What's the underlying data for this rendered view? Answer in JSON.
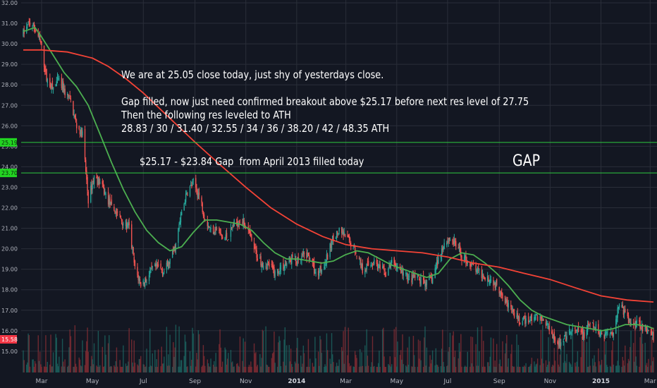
{
  "colors": {
    "background": "#131722",
    "grid": "#2a2e39",
    "axis_text": "#b2b5be",
    "candle_up": "#26a69a",
    "candle_down": "#ef5350",
    "volume_up": "#1e6b65",
    "volume_down": "#8e2f36",
    "ma_fast": "#4caf50",
    "ma_slow": "#f44336",
    "level_line": "#2ecc40",
    "level_tag": "#22d422",
    "price_tag": "#f23645"
  },
  "annotations": {
    "main_note": "We are at 25.05 close today, just shy of yesterdays close.\n\nGap filled, now just need confirmed breakout above $25.17 before next res level of 27.75\nThen the following res leveled to ATH\n28.83 / 30 / 31.40 / 32.55 / 34 / 36 / 38.20 / 42 / 48.35 ATH",
    "gap_note": "$25.17 - $23.84 Gap  from April 2013 filled today",
    "gap_label": "GAP"
  },
  "chart_data": {
    "type": "candlestick",
    "title": "",
    "y_axis": {
      "ylim": [
        14.5,
        32.2
      ],
      "ticks": [
        "32.00",
        "31.00",
        "30.00",
        "29.00",
        "28.00",
        "27.00",
        "26.00",
        "25.00",
        "24.00",
        "23.00",
        "22.00",
        "21.00",
        "20.00",
        "19.00",
        "18.00",
        "17.00",
        "16.00",
        "15.00"
      ]
    },
    "x_axis": {
      "range": [
        "2013-02-07",
        "2015-03-05"
      ],
      "ticks": [
        {
          "label": "Mar",
          "date": "2013-03-01"
        },
        {
          "label": "May",
          "date": "2013-05-01"
        },
        {
          "label": "Jul",
          "date": "2013-07-01"
        },
        {
          "label": "Sep",
          "date": "2013-09-01"
        },
        {
          "label": "Nov",
          "date": "2013-11-01"
        },
        {
          "label": "2014",
          "date": "2014-01-01"
        },
        {
          "label": "Mar",
          "date": "2014-03-01"
        },
        {
          "label": "May",
          "date": "2014-05-01"
        },
        {
          "label": "Jul",
          "date": "2014-07-01"
        },
        {
          "label": "Sep",
          "date": "2014-09-01"
        },
        {
          "label": "Nov",
          "date": "2014-11-01"
        },
        {
          "label": "2015",
          "date": "2015-01-01"
        },
        {
          "label": "Mar",
          "date": "2015-03-01"
        }
      ]
    },
    "price_path": [
      [
        "2013-02-07",
        30.5
      ],
      [
        "2013-02-14",
        31.0
      ],
      [
        "2013-02-21",
        30.8
      ],
      [
        "2013-02-28",
        30.0
      ],
      [
        "2013-03-07",
        28.3
      ],
      [
        "2013-03-14",
        27.8
      ],
      [
        "2013-03-21",
        28.2
      ],
      [
        "2013-03-28",
        27.7
      ],
      [
        "2013-04-05",
        27.2
      ],
      [
        "2013-04-12",
        26.0
      ],
      [
        "2013-04-19",
        25.6
      ],
      [
        "2013-04-26",
        22.4
      ],
      [
        "2013-05-03",
        23.5
      ],
      [
        "2013-05-10",
        23.2
      ],
      [
        "2013-05-17",
        22.6
      ],
      [
        "2013-05-24",
        22.0
      ],
      [
        "2013-05-31",
        21.7
      ],
      [
        "2013-06-07",
        21.3
      ],
      [
        "2013-06-14",
        21.0
      ],
      [
        "2013-06-21",
        19.0
      ],
      [
        "2013-06-28",
        18.3
      ],
      [
        "2013-07-05",
        18.5
      ],
      [
        "2013-07-12",
        19.0
      ],
      [
        "2013-07-19",
        19.1
      ],
      [
        "2013-07-26",
        18.9
      ],
      [
        "2013-08-02",
        19.4
      ],
      [
        "2013-08-09",
        20.2
      ],
      [
        "2013-08-16",
        21.8
      ],
      [
        "2013-08-23",
        22.8
      ],
      [
        "2013-08-30",
        23.2
      ],
      [
        "2013-09-06",
        22.6
      ],
      [
        "2013-09-13",
        21.5
      ],
      [
        "2013-09-20",
        20.9
      ],
      [
        "2013-09-27",
        21.0
      ],
      [
        "2013-10-04",
        20.5
      ],
      [
        "2013-10-11",
        20.6
      ],
      [
        "2013-10-18",
        21.2
      ],
      [
        "2013-10-25",
        21.4
      ],
      [
        "2013-11-01",
        21.2
      ],
      [
        "2013-11-08",
        20.3
      ],
      [
        "2013-11-15",
        19.6
      ],
      [
        "2013-11-22",
        19.3
      ],
      [
        "2013-11-29",
        19.2
      ],
      [
        "2013-12-06",
        18.8
      ],
      [
        "2013-12-13",
        19.1
      ],
      [
        "2013-12-20",
        19.3
      ],
      [
        "2013-12-27",
        19.6
      ],
      [
        "2014-01-03",
        19.3
      ],
      [
        "2014-01-10",
        19.7
      ],
      [
        "2014-01-17",
        19.6
      ],
      [
        "2014-01-24",
        18.7
      ],
      [
        "2014-01-31",
        19.1
      ],
      [
        "2014-02-07",
        19.6
      ],
      [
        "2014-02-14",
        20.6
      ],
      [
        "2014-02-21",
        20.8
      ],
      [
        "2014-02-28",
        20.6
      ],
      [
        "2014-03-07",
        20.3
      ],
      [
        "2014-03-14",
        19.8
      ],
      [
        "2014-03-21",
        19.0
      ],
      [
        "2014-03-28",
        19.2
      ],
      [
        "2014-04-04",
        19.4
      ],
      [
        "2014-04-11",
        19.0
      ],
      [
        "2014-04-18",
        18.8
      ],
      [
        "2014-04-25",
        19.3
      ],
      [
        "2014-05-02",
        19.1
      ],
      [
        "2014-05-09",
        18.8
      ],
      [
        "2014-05-16",
        18.5
      ],
      [
        "2014-05-23",
        18.6
      ],
      [
        "2014-05-30",
        18.4
      ],
      [
        "2014-06-06",
        18.3
      ],
      [
        "2014-06-13",
        18.6
      ],
      [
        "2014-06-20",
        19.5
      ],
      [
        "2014-06-27",
        20.3
      ],
      [
        "2014-07-04",
        20.5
      ],
      [
        "2014-07-11",
        20.2
      ],
      [
        "2014-07-18",
        19.6
      ],
      [
        "2014-07-25",
        19.4
      ],
      [
        "2014-08-01",
        19.1
      ],
      [
        "2014-08-08",
        18.8
      ],
      [
        "2014-08-15",
        18.7
      ],
      [
        "2014-08-22",
        18.5
      ],
      [
        "2014-08-29",
        18.2
      ],
      [
        "2014-09-05",
        17.8
      ],
      [
        "2014-09-12",
        17.2
      ],
      [
        "2014-09-19",
        16.8
      ],
      [
        "2014-09-26",
        16.4
      ],
      [
        "2014-10-03",
        16.5
      ],
      [
        "2014-10-10",
        16.6
      ],
      [
        "2014-10-17",
        16.7
      ],
      [
        "2014-10-24",
        16.5
      ],
      [
        "2014-10-31",
        16.2
      ],
      [
        "2014-11-07",
        15.6
      ],
      [
        "2014-11-14",
        15.3
      ],
      [
        "2014-11-21",
        15.7
      ],
      [
        "2014-11-28",
        16.0
      ],
      [
        "2014-12-05",
        15.9
      ],
      [
        "2014-12-12",
        15.8
      ],
      [
        "2014-12-19",
        16.3
      ],
      [
        "2014-12-26",
        16.1
      ],
      [
        "2015-01-02",
        15.8
      ],
      [
        "2015-01-09",
        15.9
      ],
      [
        "2015-01-16",
        16.0
      ],
      [
        "2015-01-23",
        17.4
      ],
      [
        "2015-01-30",
        16.8
      ],
      [
        "2015-02-06",
        16.3
      ],
      [
        "2015-02-13",
        16.5
      ],
      [
        "2015-02-20",
        16.2
      ],
      [
        "2015-02-27",
        15.9
      ],
      [
        "2015-03-05",
        15.7
      ]
    ],
    "moving_averages": [
      {
        "color_key": "ma_fast",
        "points": [
          [
            "2013-02-07",
            30.6
          ],
          [
            "2013-02-14",
            30.7
          ],
          [
            "2013-02-21",
            30.8
          ],
          [
            "2013-02-28",
            30.4
          ],
          [
            "2013-03-14",
            29.5
          ],
          [
            "2013-03-28",
            28.6
          ],
          [
            "2013-04-12",
            27.9
          ],
          [
            "2013-04-26",
            27.0
          ],
          [
            "2013-05-10",
            25.6
          ],
          [
            "2013-05-24",
            24.2
          ],
          [
            "2013-06-07",
            22.9
          ],
          [
            "2013-06-21",
            21.8
          ],
          [
            "2013-07-05",
            20.9
          ],
          [
            "2013-07-19",
            20.3
          ],
          [
            "2013-08-02",
            19.9
          ],
          [
            "2013-08-16",
            20.1
          ],
          [
            "2013-08-30",
            20.8
          ],
          [
            "2013-09-13",
            21.4
          ],
          [
            "2013-09-27",
            21.4
          ],
          [
            "2013-10-11",
            21.3
          ],
          [
            "2013-10-25",
            21.2
          ],
          [
            "2013-11-08",
            20.9
          ],
          [
            "2013-11-22",
            20.3
          ],
          [
            "2013-12-06",
            19.8
          ],
          [
            "2013-12-20",
            19.5
          ],
          [
            "2014-01-03",
            19.5
          ],
          [
            "2014-01-17",
            19.4
          ],
          [
            "2014-01-31",
            19.3
          ],
          [
            "2014-02-14",
            19.4
          ],
          [
            "2014-02-28",
            19.7
          ],
          [
            "2014-03-14",
            19.9
          ],
          [
            "2014-03-28",
            19.8
          ],
          [
            "2014-04-11",
            19.5
          ],
          [
            "2014-04-25",
            19.2
          ],
          [
            "2014-05-09",
            19.0
          ],
          [
            "2014-05-23",
            18.8
          ],
          [
            "2014-06-06",
            18.6
          ],
          [
            "2014-06-20",
            18.8
          ],
          [
            "2014-07-04",
            19.5
          ],
          [
            "2014-07-18",
            19.8
          ],
          [
            "2014-08-01",
            19.7
          ],
          [
            "2014-08-15",
            19.3
          ],
          [
            "2014-08-29",
            18.8
          ],
          [
            "2014-09-12",
            18.2
          ],
          [
            "2014-09-26",
            17.5
          ],
          [
            "2014-10-10",
            17.0
          ],
          [
            "2014-10-24",
            16.7
          ],
          [
            "2014-11-07",
            16.5
          ],
          [
            "2014-11-21",
            16.3
          ],
          [
            "2014-12-05",
            16.2
          ],
          [
            "2014-12-19",
            16.1
          ],
          [
            "2015-01-02",
            16.0
          ],
          [
            "2015-01-16",
            16.1
          ],
          [
            "2015-01-30",
            16.3
          ],
          [
            "2015-02-13",
            16.3
          ],
          [
            "2015-02-27",
            16.2
          ],
          [
            "2015-03-05",
            16.1
          ]
        ]
      },
      {
        "color_key": "ma_slow",
        "points": [
          [
            "2013-02-07",
            29.7
          ],
          [
            "2013-03-01",
            29.7
          ],
          [
            "2013-04-01",
            29.6
          ],
          [
            "2013-05-01",
            29.3
          ],
          [
            "2013-05-20",
            28.9
          ],
          [
            "2013-06-10",
            28.3
          ],
          [
            "2013-07-01",
            27.6
          ],
          [
            "2013-08-01",
            26.4
          ],
          [
            "2013-09-01",
            25.2
          ],
          [
            "2013-10-01",
            24.1
          ],
          [
            "2013-11-01",
            23.0
          ],
          [
            "2013-12-01",
            22.0
          ],
          [
            "2014-01-01",
            21.2
          ],
          [
            "2014-02-01",
            20.6
          ],
          [
            "2014-03-01",
            20.2
          ],
          [
            "2014-04-01",
            20.0
          ],
          [
            "2014-05-01",
            19.9
          ],
          [
            "2014-06-01",
            19.8
          ],
          [
            "2014-07-01",
            19.6
          ],
          [
            "2014-08-01",
            19.3
          ],
          [
            "2014-09-01",
            19.1
          ],
          [
            "2014-10-01",
            18.8
          ],
          [
            "2014-11-01",
            18.5
          ],
          [
            "2014-12-01",
            18.1
          ],
          [
            "2015-01-01",
            17.7
          ],
          [
            "2015-02-01",
            17.5
          ],
          [
            "2015-03-05",
            17.4
          ]
        ]
      }
    ],
    "horizontal_levels": [
      {
        "value": 25.19,
        "label": "25.19"
      },
      {
        "value": 23.7,
        "label": "23.70"
      }
    ],
    "last_price": {
      "value": 15.58,
      "label": "15.58"
    }
  }
}
